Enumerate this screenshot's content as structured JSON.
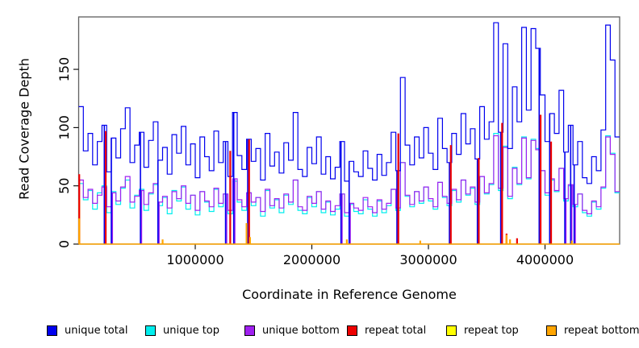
{
  "figure": {
    "xlabel": "Coordinate in Reference Genome",
    "ylabel": "Read Coverage Depth"
  },
  "chart_data": {
    "type": "line",
    "title": "",
    "xlabel": "Coordinate in Reference Genome",
    "ylabel": "Read Coverage Depth",
    "xlim": [
      0,
      4640000
    ],
    "ylim": [
      0,
      195
    ],
    "grid": false,
    "legend_position": "bottom",
    "x_step": 40000,
    "x_ticks": [
      {
        "value": 1000000,
        "label": "1000000"
      },
      {
        "value": 2000000,
        "label": "2000000"
      },
      {
        "value": 3000000,
        "label": "3000000"
      },
      {
        "value": 4000000,
        "label": "4000000"
      }
    ],
    "y_ticks": [
      {
        "value": 0,
        "label": "0"
      },
      {
        "value": 50,
        "label": "50"
      },
      {
        "value": 100,
        "label": "100"
      },
      {
        "value": 150,
        "label": "150"
      }
    ],
    "legend": [
      {
        "label": "unique total",
        "color": "#0000EE"
      },
      {
        "label": "unique top",
        "color": "#00EEEE"
      },
      {
        "label": "unique bottom",
        "color": "#A020F0"
      },
      {
        "label": "repeat total",
        "color": "#EE0000"
      },
      {
        "label": "repeat top",
        "color": "#FFFF00"
      },
      {
        "label": "repeat bottom",
        "color": "#FFA500"
      }
    ],
    "series": [
      {
        "name": "repeat top",
        "color": "#FFFF00",
        "render": "spikes",
        "z": 1,
        "spikes": [
          [
            5000,
            38
          ],
          [
            1440000,
            10
          ],
          [
            3670000,
            4
          ]
        ]
      },
      {
        "name": "unique top",
        "color": "#00EEEE",
        "render": "step",
        "z": 2,
        "values": [
          52,
          38,
          46,
          30,
          44,
          50,
          27,
          45,
          34,
          48,
          55,
          31,
          42,
          47,
          29,
          43,
          51,
          33,
          40,
          26,
          46,
          37,
          49,
          30,
          42,
          25,
          45,
          36,
          28,
          47,
          32,
          43,
          26,
          54,
          36,
          29,
          44,
          33,
          40,
          24,
          46,
          31,
          38,
          27,
          42,
          34,
          55,
          29,
          26,
          40,
          32,
          45,
          27,
          36,
          25,
          30,
          43,
          24,
          34,
          28,
          26,
          38,
          30,
          24,
          37,
          27,
          33,
          47,
          29,
          70,
          41,
          32,
          45,
          35,
          49,
          37,
          30,
          53,
          40,
          33,
          46,
          36,
          55,
          42,
          48,
          34,
          58,
          43,
          51,
          95,
          46,
          84,
          39,
          66,
          51,
          92,
          56,
          90,
          82,
          63,
          42,
          55,
          45,
          65,
          37,
          50,
          32,
          43,
          27,
          24,
          36,
          30,
          48,
          93,
          78,
          44
        ]
      },
      {
        "name": "unique bottom",
        "color": "#A020F0",
        "render": "step",
        "z": 3,
        "values": [
          55,
          40,
          47,
          35,
          42,
          49,
          32,
          44,
          37,
          49,
          58,
          36,
          41,
          46,
          34,
          44,
          52,
          36,
          41,
          31,
          45,
          39,
          50,
          35,
          42,
          29,
          45,
          37,
          32,
          48,
          35,
          43,
          29,
          56,
          38,
          32,
          44,
          36,
          40,
          28,
          47,
          33,
          39,
          31,
          43,
          36,
          55,
          32,
          29,
          41,
          35,
          45,
          30,
          37,
          28,
          33,
          43,
          27,
          35,
          31,
          29,
          40,
          32,
          27,
          38,
          30,
          35,
          47,
          31,
          70,
          42,
          34,
          45,
          37,
          49,
          39,
          32,
          53,
          41,
          35,
          47,
          38,
          55,
          43,
          49,
          36,
          58,
          44,
          52,
          93,
          48,
          83,
          41,
          65,
          52,
          91,
          57,
          89,
          81,
          63,
          44,
          56,
          46,
          65,
          39,
          51,
          34,
          43,
          29,
          26,
          37,
          32,
          49,
          92,
          77,
          45
        ],
        "drops": [
          229000,
          289000,
          539000,
          689000,
          1269000,
          1339000,
          1459000,
          2259000,
          2329000,
          2739000,
          3189000,
          3429000,
          3629000,
          3959000,
          4049000,
          4179000,
          4229000,
          4259000
        ]
      },
      {
        "name": "unique total",
        "color": "#0000EE",
        "render": "step",
        "z": 4,
        "values": [
          118,
          80,
          95,
          68,
          88,
          102,
          62,
          91,
          74,
          99,
          117,
          70,
          85,
          96,
          66,
          89,
          105,
          72,
          83,
          60,
          94,
          78,
          101,
          68,
          86,
          57,
          92,
          75,
          63,
          97,
          70,
          88,
          58,
          113,
          76,
          64,
          90,
          71,
          82,
          55,
          95,
          67,
          79,
          61,
          87,
          72,
          113,
          64,
          58,
          83,
          69,
          92,
          60,
          75,
          56,
          66,
          88,
          54,
          71,
          62,
          58,
          80,
          65,
          55,
          77,
          59,
          70,
          96,
          63,
          143,
          85,
          68,
          92,
          74,
          100,
          78,
          64,
          108,
          82,
          70,
          95,
          77,
          112,
          86,
          99,
          73,
          118,
          90,
          105,
          190,
          96,
          172,
          82,
          135,
          105,
          186,
          115,
          185,
          168,
          128,
          88,
          112,
          95,
          132,
          79,
          102,
          68,
          88,
          57,
          52,
          75,
          63,
          98,
          188,
          158,
          92
        ],
        "drops": [
          220000,
          280000,
          530000,
          680000,
          1260000,
          1330000,
          1450000,
          2250000,
          2320000,
          2730000,
          3180000,
          3420000,
          3620000,
          3950000,
          4040000,
          4170000,
          4220000,
          4250000
        ]
      },
      {
        "name": "repeat total",
        "color": "#EE0000",
        "render": "spikes",
        "z": 5,
        "spikes": [
          [
            5000,
            60
          ],
          [
            232000,
            97
          ],
          [
            1300000,
            80
          ],
          [
            1462000,
            90
          ],
          [
            2742000,
            95
          ],
          [
            3192000,
            85
          ],
          [
            3432000,
            74
          ],
          [
            3632000,
            104
          ],
          [
            3670000,
            9
          ],
          [
            3760000,
            5
          ],
          [
            3962000,
            111
          ],
          [
            4052000,
            88
          ]
        ]
      },
      {
        "name": "repeat bottom",
        "color": "#FFA500",
        "render": "spikes",
        "z": 6,
        "baseline": true,
        "spikes": [
          [
            5000,
            22
          ],
          [
            720000,
            4
          ],
          [
            1440000,
            18
          ],
          [
            1470000,
            6
          ],
          [
            2300000,
            4
          ],
          [
            2930000,
            3
          ],
          [
            3670000,
            8
          ],
          [
            3700000,
            4
          ],
          [
            4230000,
            3
          ]
        ]
      }
    ]
  }
}
